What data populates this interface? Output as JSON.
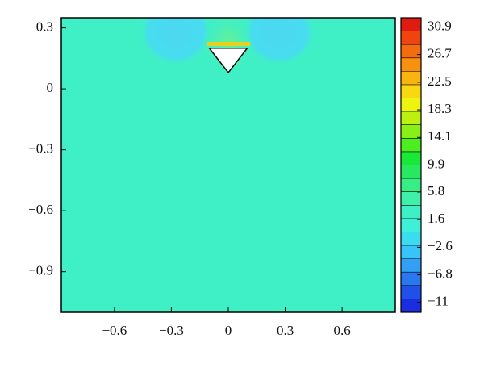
{
  "chart_data": {
    "type": "contour",
    "xlim": [
      -0.88,
      0.88
    ],
    "ylim": [
      -1.1,
      0.35
    ],
    "xticks": [
      {
        "value": -0.6,
        "label": "−0.6"
      },
      {
        "value": -0.3,
        "label": "−0.3"
      },
      0,
      0.3,
      0.6
    ],
    "yticks": [
      0.3,
      0,
      {
        "value": -0.3,
        "label": "−0.3"
      },
      {
        "value": -0.6,
        "label": "−0.6"
      },
      {
        "value": -0.9,
        "label": "−0.9"
      }
    ],
    "field_color": "#3ff0c6",
    "obstacle": {
      "x": [
        -0.1,
        0.1,
        0
      ],
      "y": [
        0.2,
        0.2,
        0.08
      ]
    },
    "colorbar": {
      "clim": [
        -12.5,
        32.3
      ],
      "ticks": [
        30.9,
        26.7,
        22.5,
        18.3,
        14.1,
        9.9,
        5.8,
        1.6,
        {
          "value": -2.6,
          "label": "−2.6"
        },
        {
          "value": -6.8,
          "label": "−6.8"
        },
        {
          "value": -11,
          "label": "−11"
        }
      ],
      "colors": [
        "#1a2ee0",
        "#2050e8",
        "#2a78f0",
        "#33a0f6",
        "#38c4f8",
        "#3cdcf0",
        "#3ff0d8",
        "#3ff0c6",
        "#3ff0a8",
        "#36ee84",
        "#28e860",
        "#1ae838",
        "#4cee20",
        "#88f016",
        "#bcf010",
        "#ecf410",
        "#f8d810",
        "#f8b410",
        "#f89010",
        "#f46c10",
        "#ee4410",
        "#e01c10"
      ]
    }
  }
}
